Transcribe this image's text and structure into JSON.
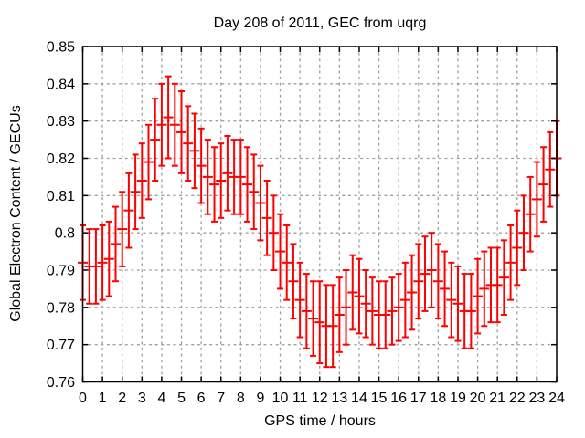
{
  "title": "Day 208 of 2011, GEC from uqrg",
  "axes": {
    "xlabel": "GPS time / hours",
    "ylabel": "Global Electron Content / GECUs",
    "xlim": [
      0,
      24
    ],
    "ylim": [
      0.76,
      0.85
    ],
    "x_tick_values": [
      0,
      1,
      2,
      3,
      4,
      5,
      6,
      7,
      8,
      9,
      10,
      11,
      12,
      13,
      14,
      15,
      16,
      17,
      18,
      19,
      20,
      21,
      22,
      23,
      24
    ],
    "x_tick_labels": [
      "0",
      "1",
      "2",
      "3",
      "4",
      "5",
      "6",
      "7",
      "8",
      "9",
      "10",
      "11",
      "12",
      "13",
      "14",
      "15",
      "16",
      "17",
      "18",
      "19",
      "20",
      "21",
      "22",
      "23",
      "24"
    ],
    "y_tick_values": [
      0.76,
      0.77,
      0.78,
      0.79,
      0.8,
      0.81,
      0.82,
      0.83,
      0.84,
      0.85
    ],
    "y_tick_labels": [
      "0.76",
      "0.77",
      "0.78",
      "0.79",
      "0.8",
      "0.81",
      "0.82",
      "0.83",
      "0.84",
      "0.85"
    ],
    "grid": "dashed"
  },
  "colors": {
    "series": "#ff0000",
    "grid": "#a0a0a0",
    "axis": "#000000",
    "text": "#000000",
    "background": "#ffffff"
  },
  "chart_data": {
    "type": "scatter",
    "style": "yerrorbars",
    "title": "Day 208 of 2011, GEC from uqrg",
    "xlabel": "GPS time / hours",
    "ylabel": "Global Electron Content / GECUs",
    "xlim": [
      0,
      24
    ],
    "ylim": [
      0.76,
      0.85
    ],
    "x": [
      0,
      0.333,
      0.667,
      1,
      1.333,
      1.667,
      2,
      2.333,
      2.667,
      3,
      3.333,
      3.667,
      4,
      4.333,
      4.667,
      5,
      5.333,
      5.667,
      6,
      6.333,
      6.667,
      7,
      7.333,
      7.667,
      8,
      8.333,
      8.667,
      9,
      9.333,
      9.667,
      10,
      10.333,
      10.667,
      11,
      11.333,
      11.667,
      12,
      12.333,
      12.667,
      13,
      13.333,
      13.667,
      14,
      14.333,
      14.667,
      15,
      15.333,
      15.667,
      16,
      16.333,
      16.667,
      17,
      17.333,
      17.667,
      18,
      18.333,
      18.667,
      19,
      19.333,
      19.667,
      20,
      20.333,
      20.667,
      21,
      21.333,
      21.667,
      22,
      22.333,
      22.667,
      23,
      23.333,
      23.667,
      24
    ],
    "y": [
      0.792,
      0.791,
      0.791,
      0.792,
      0.793,
      0.797,
      0.801,
      0.806,
      0.811,
      0.814,
      0.819,
      0.825,
      0.829,
      0.831,
      0.829,
      0.827,
      0.824,
      0.822,
      0.818,
      0.815,
      0.813,
      0.814,
      0.816,
      0.815,
      0.815,
      0.813,
      0.811,
      0.808,
      0.804,
      0.8,
      0.795,
      0.792,
      0.787,
      0.782,
      0.779,
      0.777,
      0.776,
      0.775,
      0.775,
      0.778,
      0.78,
      0.784,
      0.783,
      0.781,
      0.779,
      0.778,
      0.778,
      0.779,
      0.78,
      0.782,
      0.784,
      0.787,
      0.789,
      0.79,
      0.787,
      0.785,
      0.782,
      0.781,
      0.779,
      0.779,
      0.783,
      0.785,
      0.786,
      0.786,
      0.788,
      0.792,
      0.796,
      0.8,
      0.805,
      0.809,
      0.813,
      0.817,
      0.82
    ],
    "yerr": [
      0.01,
      0.01,
      0.01,
      0.01,
      0.01,
      0.01,
      0.01,
      0.01,
      0.01,
      0.01,
      0.01,
      0.011,
      0.011,
      0.011,
      0.011,
      0.011,
      0.01,
      0.01,
      0.01,
      0.01,
      0.01,
      0.01,
      0.01,
      0.01,
      0.01,
      0.01,
      0.01,
      0.01,
      0.01,
      0.01,
      0.01,
      0.01,
      0.01,
      0.01,
      0.01,
      0.01,
      0.011,
      0.011,
      0.011,
      0.01,
      0.01,
      0.01,
      0.01,
      0.009,
      0.009,
      0.009,
      0.009,
      0.009,
      0.009,
      0.01,
      0.01,
      0.01,
      0.01,
      0.01,
      0.01,
      0.01,
      0.01,
      0.01,
      0.01,
      0.01,
      0.01,
      0.01,
      0.01,
      0.01,
      0.01,
      0.01,
      0.01,
      0.01,
      0.01,
      0.01,
      0.01,
      0.01,
      0.01
    ],
    "legend": "none"
  }
}
